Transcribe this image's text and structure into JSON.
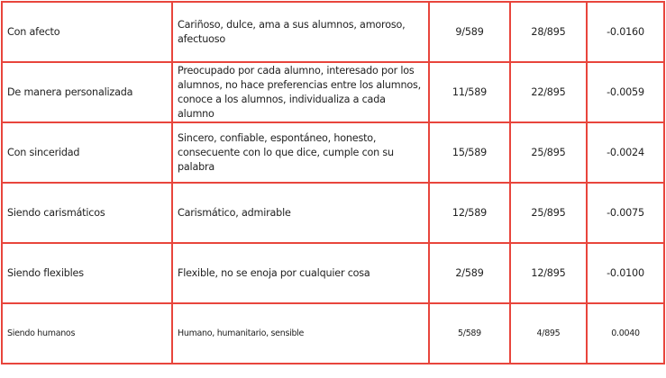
{
  "border_color": "#e8453c",
  "rows": [
    {
      "category": "Con afecto",
      "descriptors": "Cariñoso, dulce, ama a sus alumnos, amoroso, afectuoso",
      "group1": "9/589",
      "group2": "28/895",
      "difference": "-0.0160"
    },
    {
      "category": "De manera personalizada",
      "descriptors": "Preocupado por cada alumno, interesado por los alumnos, no hace preferencias entre los alumnos, conoce a los alumnos, individualiza a cada alumno",
      "group1": "11/589",
      "group2": "22/895",
      "difference": "-0.0059"
    },
    {
      "category": "Con sinceridad",
      "descriptors": "Sincero, confiable, espontáneo, honesto, consecuente con lo que dice, cumple con su palabra",
      "group1": "15/589",
      "group2": "25/895",
      "difference": "-0.0024"
    },
    {
      "category": "Siendo carismáticos",
      "descriptors": "Carismático, admirable",
      "group1": "12/589",
      "group2": "25/895",
      "difference": "-0.0075"
    },
    {
      "category": "Siendo flexibles",
      "descriptors": "Flexible, no se enoja por cualquier cosa",
      "group1": "2/589",
      "group2": "12/895",
      "difference": "-0.0100"
    },
    {
      "category": "Siendo humanos",
      "descriptors": "Humano, humanitario, sensible",
      "group1": "5/589",
      "group2": "4/895",
      "difference": "0.0040"
    }
  ]
}
